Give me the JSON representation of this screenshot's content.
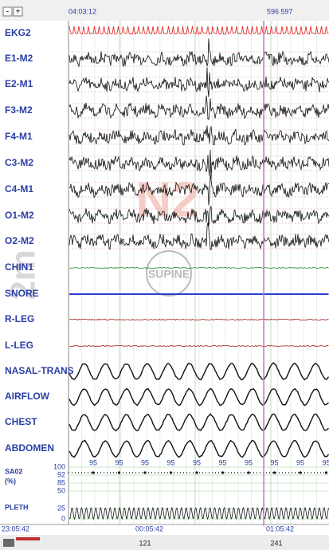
{
  "toolbar": {
    "buttons": [
      "-",
      "+"
    ],
    "time": "04:03:12",
    "epochs": "596 597"
  },
  "channels": [
    "EKG2",
    "E1-M2",
    "E2-M1",
    "F3-M2",
    "F4-M1",
    "C3-M2",
    "C4-M1",
    "O1-M2",
    "O2-M2",
    "CHIN1",
    "SNORE",
    "R-LEG",
    "L-LEG",
    "NASAL-TRANS",
    "AIRFLOW",
    "CHEST",
    "ABDOMEN"
  ],
  "sao2": {
    "label": [
      "SA02",
      "(%)"
    ],
    "scale": [
      "100",
      "92",
      "85",
      "50"
    ],
    "readings": [
      "95",
      "95",
      "95",
      "95",
      "95",
      "95",
      "95",
      "95",
      "95",
      "95"
    ]
  },
  "pleth": {
    "label": "PLETH",
    "scale": [
      "25",
      "0"
    ]
  },
  "overlays": {
    "window": "2m",
    "stage": "N2",
    "position": "SUPINE"
  },
  "footer": {
    "times": [
      "23:05:42",
      "00:05:42",
      "01:05:42"
    ],
    "epochs": [
      "121",
      "241"
    ]
  }
}
